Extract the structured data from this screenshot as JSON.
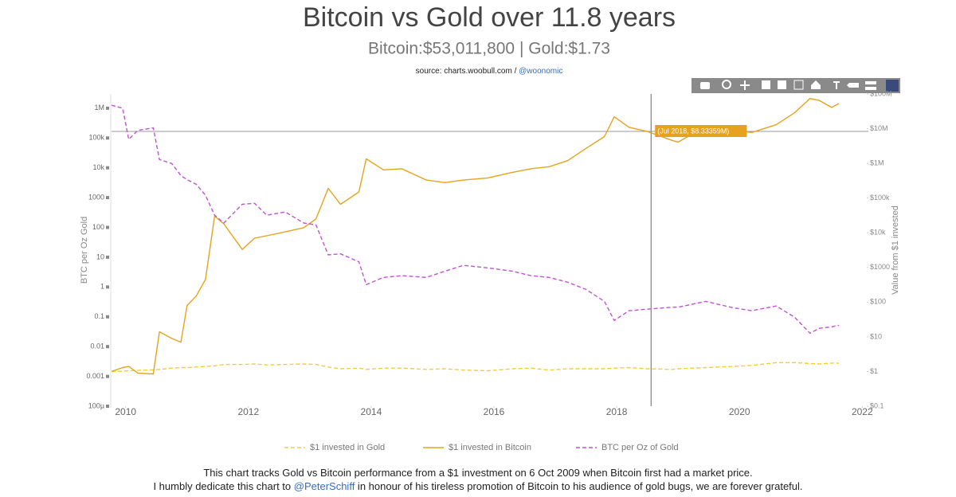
{
  "chart_data": {
    "type": "line",
    "title": "Bitcoin vs Gold over 11.8 years",
    "subtitle": "Bitcoin:$53,011,800 | Gold:$1.73",
    "source": {
      "text": "source: charts.woobull.com / ",
      "link": "@woonomic"
    },
    "ylabel": "BTC per Oz Gold",
    "y2label": "Value from $1 invested",
    "log_y": true,
    "log_y2": true,
    "grid": false,
    "legend": "bottom",
    "x": [
      2009.77,
      2009.95,
      2010.05,
      2010.2,
      2010.45,
      2010.55,
      2010.75,
      2010.9,
      2011.0,
      2011.15,
      2011.3,
      2011.45,
      2011.6,
      2011.9,
      2012.1,
      2012.3,
      2012.6,
      2012.9,
      2013.1,
      2013.3,
      2013.5,
      2013.8,
      2013.92,
      2014.2,
      2014.5,
      2014.9,
      2015.2,
      2015.5,
      2015.9,
      2016.3,
      2016.6,
      2016.9,
      2017.2,
      2017.5,
      2017.8,
      2017.96,
      2018.2,
      2018.5,
      2018.9,
      2019.0,
      2019.45,
      2019.9,
      2020.2,
      2020.6,
      2020.9,
      2021.15,
      2021.3,
      2021.5,
      2021.62
    ],
    "xlim": [
      2009.77,
      2022.1
    ],
    "xticks": [
      2010,
      2012,
      2014,
      2016,
      2018,
      2020,
      2022
    ],
    "ylim": [
      0.0001,
      3000000
    ],
    "yticks": [
      {
        "value": 0.0001,
        "label": "100µ"
      },
      0.001,
      0.01,
      0.1,
      1,
      10,
      100,
      1000,
      {
        "value": 10000,
        "label": "10k"
      },
      {
        "value": 100000,
        "label": "100k"
      },
      {
        "value": 1000000,
        "label": "1M"
      }
    ],
    "y2lim": [
      0.1,
      100000000
    ],
    "y2ticks": [
      {
        "value": 0.1,
        "label": "$0.1"
      },
      {
        "value": 1,
        "label": "$1"
      },
      {
        "value": 10,
        "label": "$10"
      },
      {
        "value": 100,
        "label": "$100"
      },
      {
        "value": 1000,
        "label": "$1000"
      },
      {
        "value": 10000,
        "label": "$10k"
      },
      {
        "value": 100000,
        "label": "$100k"
      },
      {
        "value": 1000000,
        "label": "$1M"
      },
      {
        "value": 10000000,
        "label": "$10M"
      },
      {
        "value": 100000000,
        "label": "$100M"
      }
    ],
    "series": [
      {
        "name": "$1 invested in Gold",
        "color": "#f5cc3a",
        "dash": true,
        "axis": "y2",
        "values": [
          1,
          1.02,
          1.05,
          1.08,
          1.12,
          1.15,
          1.25,
          1.3,
          1.3,
          1.35,
          1.4,
          1.45,
          1.6,
          1.6,
          1.65,
          1.55,
          1.6,
          1.65,
          1.6,
          1.35,
          1.2,
          1.25,
          1.15,
          1.25,
          1.25,
          1.15,
          1.2,
          1.1,
          1.05,
          1.2,
          1.25,
          1.1,
          1.2,
          1.2,
          1.2,
          1.25,
          1.3,
          1.2,
          1.15,
          1.2,
          1.3,
          1.4,
          1.5,
          1.8,
          1.8,
          1.7,
          1.65,
          1.75,
          1.73
        ]
      },
      {
        "name": "$1 invested in Bitcoin",
        "color": "#e6a21e",
        "dash": false,
        "axis": "y2",
        "values": [
          1,
          1.3,
          1.4,
          0.9,
          0.85,
          14,
          9,
          7,
          80,
          150,
          450,
          30000,
          18000,
          3300,
          7000,
          8200,
          10600,
          14000,
          25000,
          190000,
          66000,
          150000,
          1350000,
          650000,
          700000,
          330000,
          280000,
          330000,
          380000,
          550000,
          700000,
          800000,
          1200000,
          2700000,
          5900000,
          22000000,
          11000000,
          8300000,
          4600000,
          4100000,
          11500000,
          8900000,
          7800000,
          13000000,
          29000000,
          74000000,
          65000000,
          41000000,
          53011800
        ]
      },
      {
        "name": "BTC per Oz of Gold",
        "color": "#c052d4",
        "dash": true,
        "axis": "y",
        "values": [
          1260000,
          1000000,
          90000,
          180000,
          220000,
          19000,
          14000,
          5500,
          4000,
          2800,
          1200,
          256,
          140,
          600,
          640,
          256,
          330,
          140,
          122,
          12,
          13,
          7,
          1.2,
          2.1,
          2.4,
          2.1,
          3.4,
          5.3,
          4.4,
          3.4,
          2.4,
          2.1,
          1.45,
          0.83,
          0.33,
          0.075,
          0.16,
          0.18,
          0.21,
          0.21,
          0.33,
          0.2,
          0.16,
          0.23,
          0.096,
          0.028,
          0.041,
          0.046,
          0.052
        ]
      }
    ],
    "hover": {
      "x": 2018.56,
      "value": 8333590,
      "label": "(Jul 2018, $8.33359M)"
    },
    "footer": {
      "line1": "This chart tracks Gold vs Bitcoin performance from a $1 investment on 6 Oct 2009 when Bitcoin first had a market price.",
      "line2_before": "I humbly dedicate this chart to ",
      "link": "@PeterSchiff",
      "line2_after": " in honour of his tireless promotion of Bitcoin to his audience of gold bugs, we are forever grateful."
    }
  }
}
